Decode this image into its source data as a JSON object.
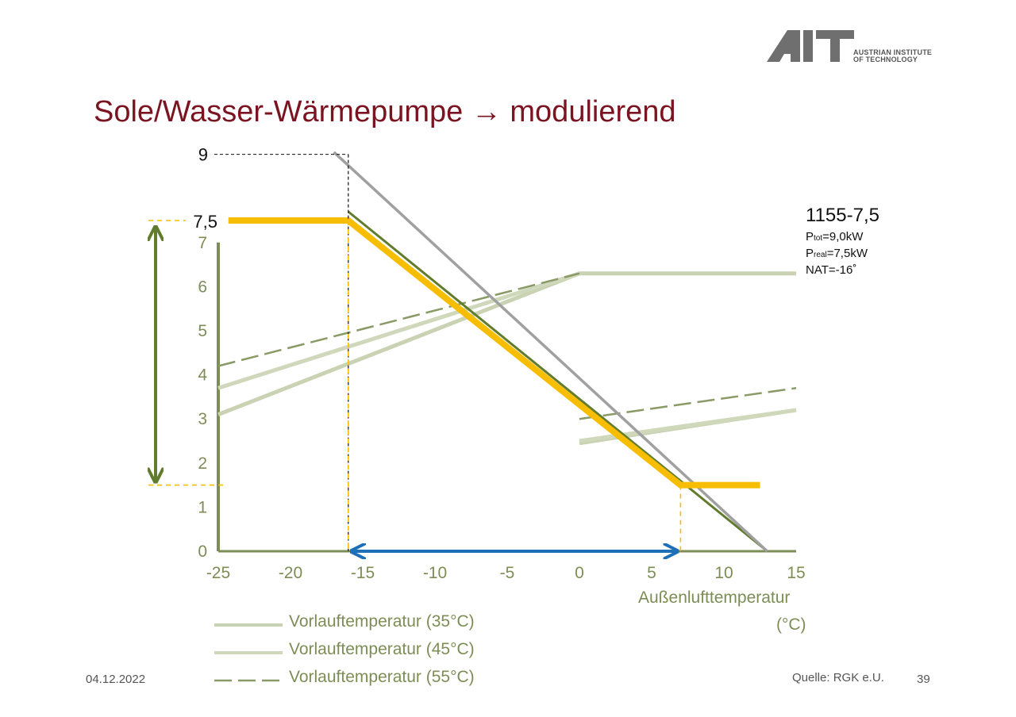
{
  "slide": {
    "title": "Sole/Wasser-Wärmepumpe → modulierend",
    "date": "04.12.2022",
    "source": "Quelle: RGK e.U.",
    "page_number": "39",
    "logo": {
      "mark": "AIT",
      "line1": "AUSTRIAN INSTITUTE",
      "line2": "OF TECHNOLOGY",
      "color": "#6f6f6f"
    }
  },
  "info": {
    "model": "1155-7,5",
    "p_tot_sub": "tot",
    "p_tot_value": "=9,0kW",
    "p_real_sub": "real",
    "p_real_value": "=7,5kW",
    "nat": "NAT=-16˚"
  },
  "chart_data": {
    "type": "line",
    "xlabel": "Außenlufttemperatur",
    "xunit": "(°C)",
    "xlim": [
      -25,
      15
    ],
    "ylim": [
      0,
      7
    ],
    "x_ticks": [
      "-25",
      "-20",
      "-15",
      "-10",
      "-5",
      "0",
      "5",
      "10",
      "15"
    ],
    "y_ticks": [
      "0",
      "1",
      "2",
      "3",
      "4",
      "5",
      "6",
      "7"
    ],
    "extra_y_labels": [
      "9",
      "7,5"
    ],
    "colors": {
      "axis": "#7d8d56",
      "vl35": "#c9d3b3",
      "vl45": "#cfd8ba",
      "vl55": "#8a9a66",
      "heat_demand": "#a0a0a0",
      "modulation": "#f7bd00",
      "range_arrow": "#627c2e",
      "nat_arrow": "#1f6fb8"
    },
    "series": [
      {
        "name": "Vorlauftemperatur (35°C)",
        "style": "solid",
        "segments": [
          [
            [
              -25,
              3.1
            ],
            [
              0,
              6.3
            ],
            [
              15,
              6.3
            ]
          ],
          [
            [
              0,
              2.45
            ],
            [
              15,
              3.2
            ]
          ]
        ]
      },
      {
        "name": "Vorlauftemperatur (45°C)",
        "style": "solid",
        "segments": [
          [
            [
              -25,
              3.7
            ],
            [
              0,
              6.3
            ]
          ],
          [
            [
              0,
              2.5
            ],
            [
              15,
              3.2
            ]
          ]
        ]
      },
      {
        "name": "Vorlauftemperatur (55°C)",
        "style": "dashed",
        "segments": [
          [
            [
              -25,
              4.2
            ],
            [
              0,
              6.3
            ]
          ],
          [
            [
              0,
              3.0
            ],
            [
              15,
              3.7
            ]
          ]
        ]
      },
      {
        "style": "solid",
        "segments": [
          [
            [
              -17,
              9.05
            ],
            [
              13,
              0
            ]
          ]
        ]
      },
      {
        "style": "solid",
        "segments": [
          [
            [
              -24.3,
              7.5
            ],
            [
              -16,
              7.5
            ],
            [
              7,
              1.5
            ],
            [
              12.5,
              1.5
            ]
          ]
        ]
      },
      {
        "style": "solid",
        "segments": [
          [
            [
              -16,
              7.7
            ],
            [
              13,
              0
            ]
          ]
        ]
      }
    ],
    "annotations": {
      "nat_x": -16,
      "design_power": 9,
      "max_power": 7.5,
      "min_power": 1.5,
      "modulation_end_x": 7
    }
  }
}
